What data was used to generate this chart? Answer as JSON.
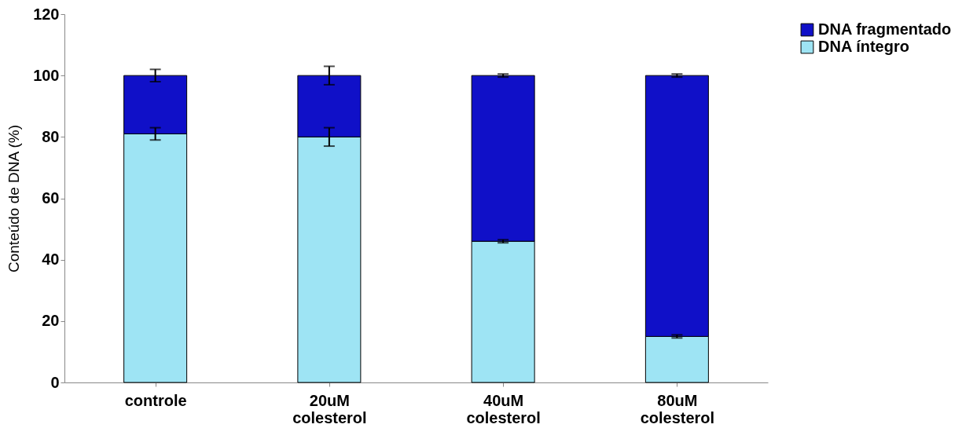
{
  "chart_data": {
    "type": "bar",
    "stacked": true,
    "ylabel": "Conteúdo de DNA (%)",
    "categories": [
      "controle",
      "20uM colesterol",
      "40uM colesterol",
      "80uM colesterol"
    ],
    "series": [
      {
        "name": "DNA íntegro",
        "color": "#9ee4f4",
        "values": [
          81,
          80,
          46,
          15
        ],
        "errors": [
          2,
          3,
          0.5,
          0.5
        ]
      },
      {
        "name": "DNA fragmentado",
        "color": "#1010c8",
        "values": [
          19,
          20,
          54,
          85
        ],
        "errors": [
          2,
          3,
          0.5,
          0.5
        ]
      }
    ],
    "ylim": [
      0,
      120
    ],
    "yticks": [
      0,
      20,
      40,
      60,
      80,
      100,
      120
    ],
    "grid": false,
    "legend": "right"
  }
}
